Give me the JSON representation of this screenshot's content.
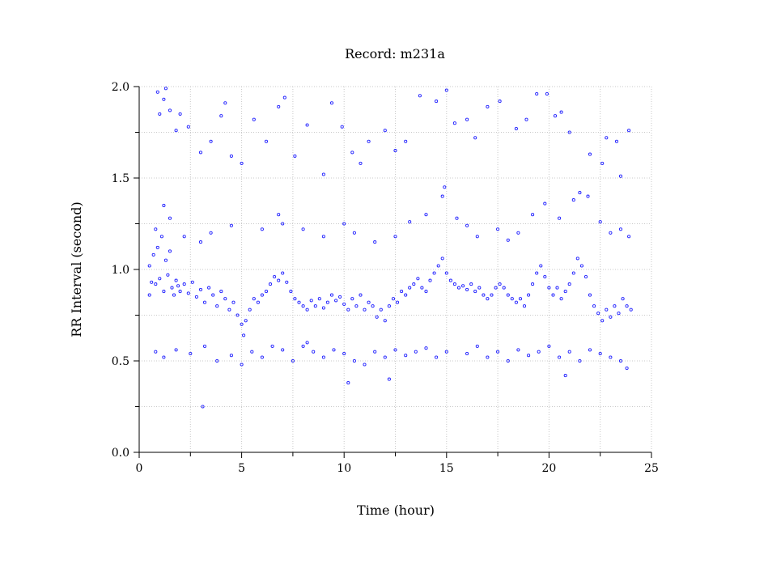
{
  "chart_data": {
    "type": "scatter",
    "title": "Record:  m231a",
    "xlabel": "Time (hour)",
    "ylabel": "RR Interval (second)",
    "xlim": [
      0,
      25
    ],
    "ylim": [
      0,
      2.0
    ],
    "x_ticks": [
      0,
      5,
      10,
      15,
      20,
      25
    ],
    "x_tick_labels": [
      "0",
      "5",
      "10",
      "15",
      "20",
      "25"
    ],
    "x_minor_ticks": [
      2.5,
      7.5,
      12.5,
      17.5,
      22.5
    ],
    "y_ticks": [
      0.0,
      0.5,
      1.0,
      1.5,
      2.0
    ],
    "y_tick_labels": [
      "0.0",
      "0.5",
      "1.0",
      "1.5",
      "2.0"
    ],
    "y_minor_ticks": [
      0.25,
      0.75,
      1.25,
      1.75
    ],
    "grid": true,
    "marker": "open-circle",
    "point_color": "#1f1fff",
    "series": [
      {
        "name": "",
        "time_range": [
          0.5,
          24.0
        ],
        "points": [
          [
            0.5,
            0.86
          ],
          [
            0.5,
            1.02
          ],
          [
            0.6,
            0.93
          ],
          [
            0.7,
            1.08
          ],
          [
            0.8,
            0.92
          ],
          [
            0.9,
            1.12
          ],
          [
            1.0,
            0.95
          ],
          [
            1.1,
            1.18
          ],
          [
            1.2,
            0.88
          ],
          [
            1.3,
            1.05
          ],
          [
            1.4,
            0.97
          ],
          [
            1.5,
            1.1
          ],
          [
            1.6,
            0.9
          ],
          [
            1.7,
            0.86
          ],
          [
            1.8,
            0.94
          ],
          [
            1.9,
            0.91
          ],
          [
            2.0,
            0.88
          ],
          [
            2.2,
            0.92
          ],
          [
            2.4,
            0.87
          ],
          [
            2.6,
            0.93
          ],
          [
            2.8,
            0.85
          ],
          [
            3.0,
            0.89
          ],
          [
            3.2,
            0.82
          ],
          [
            3.4,
            0.9
          ],
          [
            3.6,
            0.86
          ],
          [
            3.8,
            0.8
          ],
          [
            4.0,
            0.88
          ],
          [
            4.2,
            0.84
          ],
          [
            4.4,
            0.78
          ],
          [
            4.6,
            0.82
          ],
          [
            4.8,
            0.75
          ],
          [
            5.0,
            0.7
          ],
          [
            5.1,
            0.64
          ],
          [
            5.2,
            0.72
          ],
          [
            5.4,
            0.78
          ],
          [
            5.6,
            0.84
          ],
          [
            5.8,
            0.82
          ],
          [
            6.0,
            0.86
          ],
          [
            6.2,
            0.88
          ],
          [
            6.4,
            0.92
          ],
          [
            6.6,
            0.96
          ],
          [
            6.8,
            0.94
          ],
          [
            7.0,
            0.98
          ],
          [
            7.2,
            0.93
          ],
          [
            7.4,
            0.88
          ],
          [
            7.6,
            0.84
          ],
          [
            7.8,
            0.82
          ],
          [
            8.0,
            0.8
          ],
          [
            8.2,
            0.78
          ],
          [
            8.4,
            0.83
          ],
          [
            8.6,
            0.8
          ],
          [
            8.8,
            0.84
          ],
          [
            9.0,
            0.79
          ],
          [
            9.2,
            0.82
          ],
          [
            9.4,
            0.86
          ],
          [
            9.6,
            0.83
          ],
          [
            9.8,
            0.85
          ],
          [
            10.0,
            0.81
          ],
          [
            10.2,
            0.78
          ],
          [
            10.4,
            0.84
          ],
          [
            10.6,
            0.8
          ],
          [
            10.8,
            0.86
          ],
          [
            11.0,
            0.78
          ],
          [
            11.2,
            0.82
          ],
          [
            11.4,
            0.8
          ],
          [
            11.6,
            0.74
          ],
          [
            11.8,
            0.78
          ],
          [
            12.0,
            0.72
          ],
          [
            12.2,
            0.8
          ],
          [
            12.4,
            0.84
          ],
          [
            12.6,
            0.82
          ],
          [
            12.8,
            0.88
          ],
          [
            13.0,
            0.86
          ],
          [
            13.2,
            0.9
          ],
          [
            13.4,
            0.92
          ],
          [
            13.6,
            0.95
          ],
          [
            13.8,
            0.9
          ],
          [
            14.0,
            0.88
          ],
          [
            14.2,
            0.94
          ],
          [
            14.4,
            0.98
          ],
          [
            14.6,
            1.02
          ],
          [
            14.8,
            1.06
          ],
          [
            15.0,
            0.98
          ],
          [
            15.2,
            0.94
          ],
          [
            15.4,
            0.92
          ],
          [
            15.6,
            0.9
          ],
          [
            15.8,
            0.91
          ],
          [
            16.0,
            0.89
          ],
          [
            16.2,
            0.92
          ],
          [
            16.4,
            0.88
          ],
          [
            16.6,
            0.9
          ],
          [
            16.8,
            0.86
          ],
          [
            17.0,
            0.84
          ],
          [
            17.2,
            0.86
          ],
          [
            17.4,
            0.9
          ],
          [
            17.6,
            0.92
          ],
          [
            17.8,
            0.9
          ],
          [
            18.0,
            0.86
          ],
          [
            18.2,
            0.84
          ],
          [
            18.4,
            0.82
          ],
          [
            18.6,
            0.84
          ],
          [
            18.8,
            0.8
          ],
          [
            19.0,
            0.86
          ],
          [
            19.2,
            0.92
          ],
          [
            19.4,
            0.98
          ],
          [
            19.6,
            1.02
          ],
          [
            19.8,
            0.96
          ],
          [
            20.0,
            0.9
          ],
          [
            20.2,
            0.86
          ],
          [
            20.4,
            0.9
          ],
          [
            20.6,
            0.84
          ],
          [
            20.8,
            0.88
          ],
          [
            21.0,
            0.92
          ],
          [
            21.2,
            0.98
          ],
          [
            21.4,
            1.06
          ],
          [
            21.6,
            1.02
          ],
          [
            21.8,
            0.96
          ],
          [
            22.0,
            0.86
          ],
          [
            22.2,
            0.8
          ],
          [
            22.4,
            0.76
          ],
          [
            22.6,
            0.72
          ],
          [
            22.8,
            0.78
          ],
          [
            23.0,
            0.74
          ],
          [
            23.2,
            0.8
          ],
          [
            23.4,
            0.76
          ],
          [
            23.6,
            0.84
          ],
          [
            23.8,
            0.8
          ],
          [
            24.0,
            0.78
          ],
          [
            0.8,
            1.22
          ],
          [
            1.2,
            1.35
          ],
          [
            1.5,
            1.28
          ],
          [
            2.2,
            1.18
          ],
          [
            3.0,
            1.15
          ],
          [
            3.5,
            1.2
          ],
          [
            4.5,
            1.24
          ],
          [
            6.0,
            1.22
          ],
          [
            6.8,
            1.3
          ],
          [
            7.0,
            1.25
          ],
          [
            8.0,
            1.22
          ],
          [
            9.0,
            1.18
          ],
          [
            10.0,
            1.25
          ],
          [
            10.5,
            1.2
          ],
          [
            11.5,
            1.15
          ],
          [
            12.5,
            1.18
          ],
          [
            13.2,
            1.26
          ],
          [
            14.0,
            1.3
          ],
          [
            14.8,
            1.4
          ],
          [
            14.9,
            1.45
          ],
          [
            15.5,
            1.28
          ],
          [
            16.0,
            1.24
          ],
          [
            16.5,
            1.18
          ],
          [
            17.5,
            1.22
          ],
          [
            18.0,
            1.16
          ],
          [
            18.5,
            1.2
          ],
          [
            19.2,
            1.3
          ],
          [
            19.8,
            1.36
          ],
          [
            20.5,
            1.28
          ],
          [
            21.2,
            1.38
          ],
          [
            21.5,
            1.42
          ],
          [
            21.9,
            1.4
          ],
          [
            22.5,
            1.26
          ],
          [
            23.0,
            1.2
          ],
          [
            23.5,
            1.22
          ],
          [
            23.9,
            1.18
          ],
          [
            0.8,
            0.55
          ],
          [
            1.2,
            0.52
          ],
          [
            1.8,
            0.56
          ],
          [
            2.5,
            0.54
          ],
          [
            3.2,
            0.58
          ],
          [
            3.8,
            0.5
          ],
          [
            4.5,
            0.53
          ],
          [
            5.0,
            0.48
          ],
          [
            5.5,
            0.55
          ],
          [
            6.0,
            0.52
          ],
          [
            6.5,
            0.58
          ],
          [
            7.0,
            0.56
          ],
          [
            7.5,
            0.5
          ],
          [
            8.0,
            0.58
          ],
          [
            8.2,
            0.6
          ],
          [
            8.5,
            0.55
          ],
          [
            9.0,
            0.52
          ],
          [
            9.5,
            0.56
          ],
          [
            10.0,
            0.54
          ],
          [
            10.5,
            0.5
          ],
          [
            11.0,
            0.48
          ],
          [
            11.5,
            0.55
          ],
          [
            12.0,
            0.52
          ],
          [
            12.5,
            0.56
          ],
          [
            13.0,
            0.53
          ],
          [
            13.5,
            0.55
          ],
          [
            14.0,
            0.57
          ],
          [
            14.5,
            0.52
          ],
          [
            15.0,
            0.55
          ],
          [
            16.0,
            0.54
          ],
          [
            16.5,
            0.58
          ],
          [
            17.0,
            0.52
          ],
          [
            17.5,
            0.55
          ],
          [
            18.0,
            0.5
          ],
          [
            18.5,
            0.56
          ],
          [
            19.0,
            0.53
          ],
          [
            19.5,
            0.55
          ],
          [
            20.0,
            0.58
          ],
          [
            20.5,
            0.52
          ],
          [
            21.0,
            0.55
          ],
          [
            21.5,
            0.5
          ],
          [
            22.0,
            0.56
          ],
          [
            22.5,
            0.54
          ],
          [
            23.0,
            0.52
          ],
          [
            23.5,
            0.5
          ],
          [
            23.8,
            0.46
          ],
          [
            20.8,
            0.42
          ],
          [
            10.2,
            0.38
          ],
          [
            12.2,
            0.4
          ],
          [
            3.1,
            0.25
          ],
          [
            0.9,
            1.97
          ],
          [
            1.0,
            1.85
          ],
          [
            1.2,
            1.93
          ],
          [
            1.3,
            1.99
          ],
          [
            1.5,
            1.87
          ],
          [
            1.8,
            1.76
          ],
          [
            2.0,
            1.85
          ],
          [
            2.4,
            1.78
          ],
          [
            3.0,
            1.64
          ],
          [
            3.5,
            1.7
          ],
          [
            4.0,
            1.84
          ],
          [
            4.2,
            1.91
          ],
          [
            4.5,
            1.62
          ],
          [
            5.0,
            1.58
          ],
          [
            5.6,
            1.82
          ],
          [
            6.2,
            1.7
          ],
          [
            6.8,
            1.89
          ],
          [
            7.1,
            1.94
          ],
          [
            7.6,
            1.62
          ],
          [
            8.2,
            1.79
          ],
          [
            9.0,
            1.52
          ],
          [
            9.4,
            1.91
          ],
          [
            9.9,
            1.78
          ],
          [
            10.4,
            1.64
          ],
          [
            10.8,
            1.58
          ],
          [
            11.2,
            1.7
          ],
          [
            12.0,
            1.76
          ],
          [
            12.5,
            1.65
          ],
          [
            13.0,
            1.7
          ],
          [
            13.7,
            1.95
          ],
          [
            14.5,
            1.92
          ],
          [
            15.0,
            1.98
          ],
          [
            15.4,
            1.8
          ],
          [
            16.0,
            1.82
          ],
          [
            16.4,
            1.72
          ],
          [
            17.0,
            1.89
          ],
          [
            17.6,
            1.92
          ],
          [
            18.4,
            1.77
          ],
          [
            18.9,
            1.82
          ],
          [
            19.4,
            1.96
          ],
          [
            19.9,
            1.96
          ],
          [
            20.3,
            1.84
          ],
          [
            21.0,
            1.75
          ],
          [
            22.0,
            1.63
          ],
          [
            22.6,
            1.58
          ],
          [
            23.3,
            1.7
          ],
          [
            23.9,
            1.76
          ],
          [
            23.5,
            1.51
          ],
          [
            22.8,
            1.72
          ],
          [
            20.6,
            1.86
          ]
        ]
      }
    ]
  }
}
